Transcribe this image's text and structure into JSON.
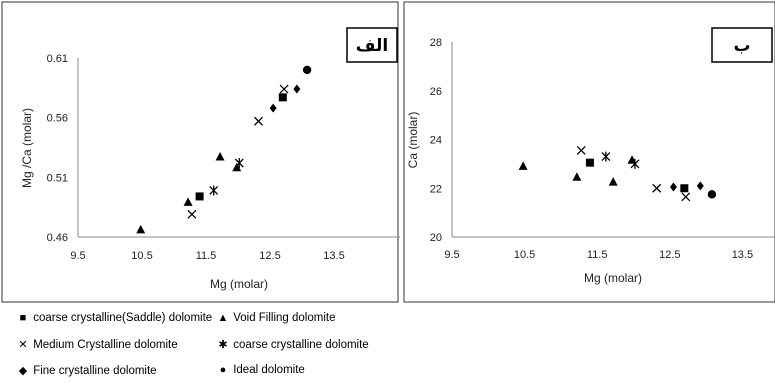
{
  "chart_data": [
    {
      "type": "scatter",
      "panel_label": "الف",
      "xlabel": "Mg (molar)",
      "ylabel": "Mg /Ca (molar)",
      "xlim": [
        9.5,
        14.0
      ],
      "ylim": [
        0.46,
        0.61
      ],
      "xticks": [
        "9.5",
        "10.5",
        "11.5",
        "12.5",
        "13.5"
      ],
      "yticks": [
        "0.46",
        "0.51",
        "0.56",
        "0.61"
      ],
      "grid": false,
      "series": [
        {
          "name": "coarse crystalline(Saddle) dolomite",
          "marker": "square",
          "points": [
            [
              11.4,
              0.494
            ],
            [
              12.7,
              0.577
            ]
          ]
        },
        {
          "name": "Void Filling dolomite",
          "marker": "triangle",
          "points": [
            [
              10.48,
              0.466
            ],
            [
              11.22,
              0.489
            ],
            [
              11.72,
              0.527
            ],
            [
              11.98,
              0.518
            ]
          ]
        },
        {
          "name": "Medium Crystalline dolomite",
          "marker": "x",
          "points": [
            [
              11.28,
              0.479
            ],
            [
              12.32,
              0.557
            ],
            [
              12.72,
              0.584
            ]
          ]
        },
        {
          "name": "coarse crystalline dolomite",
          "marker": "asterisk",
          "points": [
            [
              11.62,
              0.499
            ],
            [
              12.02,
              0.522
            ]
          ]
        },
        {
          "name": "Fine crystalline dolomite",
          "marker": "diamond",
          "points": [
            [
              12.55,
              0.568
            ],
            [
              12.92,
              0.584
            ]
          ]
        },
        {
          "name": "Ideal dolomite",
          "marker": "circle",
          "points": [
            [
              13.08,
              0.6
            ]
          ]
        }
      ]
    },
    {
      "type": "scatter",
      "panel_label": "ب",
      "xlabel": "Mg (molar)",
      "ylabel": "Ca (molar)",
      "xlim": [
        9.5,
        14.0
      ],
      "ylim": [
        20,
        28
      ],
      "xticks": [
        "9.5",
        "10.5",
        "11.5",
        "12.5",
        "13.5"
      ],
      "yticks": [
        "20",
        "22",
        "24",
        "26",
        "28"
      ],
      "grid": false,
      "series": [
        {
          "name": "coarse crystalline(Saddle) dolomite",
          "marker": "square",
          "points": [
            [
              11.4,
              23.05
            ],
            [
              12.7,
              22.0
            ]
          ]
        },
        {
          "name": "Void Filling dolomite",
          "marker": "triangle",
          "points": [
            [
              10.48,
              22.9
            ],
            [
              11.22,
              22.45
            ],
            [
              11.72,
              22.25
            ],
            [
              11.98,
              23.15
            ]
          ]
        },
        {
          "name": "Medium Crystalline dolomite",
          "marker": "x",
          "points": [
            [
              11.28,
              23.55
            ],
            [
              12.32,
              22.0
            ],
            [
              12.72,
              21.65
            ]
          ]
        },
        {
          "name": "coarse crystalline dolomite",
          "marker": "asterisk",
          "points": [
            [
              11.62,
              23.3
            ],
            [
              12.02,
              23.0
            ]
          ]
        },
        {
          "name": "Fine crystalline dolomite",
          "marker": "diamond",
          "points": [
            [
              12.55,
              22.05
            ],
            [
              12.92,
              22.1
            ]
          ]
        },
        {
          "name": "Ideal dolomite",
          "marker": "circle",
          "points": [
            [
              13.08,
              21.75
            ]
          ]
        }
      ]
    }
  ],
  "legend": [
    {
      "label": "coarse crystalline(Saddle) dolomite",
      "marker": "■"
    },
    {
      "label": "Void Filling dolomite",
      "marker": "▲"
    },
    {
      "label": "Medium Crystalline dolomite",
      "marker": "✕"
    },
    {
      "label": "coarse crystalline dolomite",
      "marker": "✱"
    },
    {
      "label": "Fine crystalline dolomite",
      "marker": "◆"
    },
    {
      "label": "Ideal dolomite",
      "marker": "●"
    }
  ]
}
